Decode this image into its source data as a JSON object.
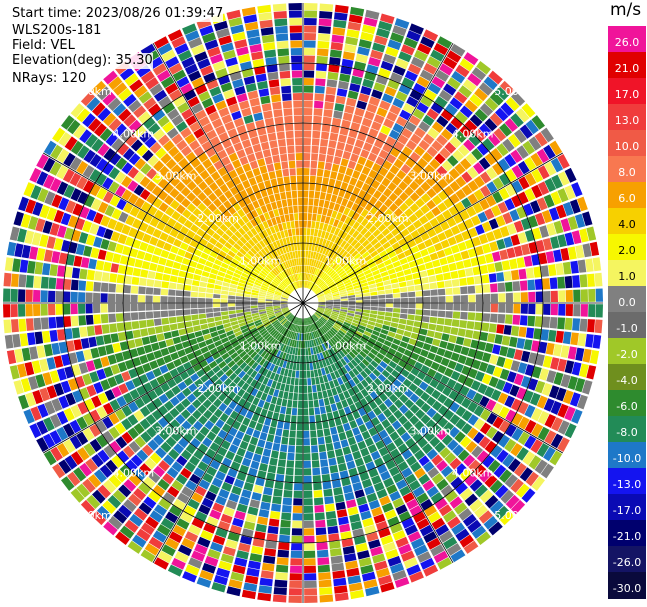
{
  "info": {
    "start_time": "Start time: 2023/08/26 01:39:47",
    "device": "WLS200s-181",
    "field": "Field: VEL",
    "elevation": "Elevation(deg): 35.30",
    "nrays": "NRays: 120"
  },
  "colorbar": {
    "unit": "m/s",
    "ticks": [
      "26.0",
      "21.0",
      "17.0",
      "13.0",
      "10.0",
      "8.0",
      "6.0",
      "4.0",
      "2.0",
      "1.0",
      "0.0",
      "-1.0",
      "-2.0",
      "-4.0",
      "-6.0",
      "-8.0",
      "-10.0",
      "-13.0",
      "-17.0",
      "-21.0",
      "-26.0",
      "-30.0"
    ],
    "colors": [
      "#f0149a",
      "#e00000",
      "#f01428",
      "#f03c3c",
      "#f05a46",
      "#f87850",
      "#f7a000",
      "#f7d000",
      "#f7f700",
      "#f5f560",
      "#808080",
      "#6b6b6b",
      "#a0c828",
      "#6f8f1e",
      "#2e8b2e",
      "#228b57",
      "#1e78c8",
      "#1414f0",
      "#0a0ab4",
      "#00006e",
      "#141464",
      "#0a0a3c"
    ]
  },
  "chart_data": {
    "type": "ppi-radar",
    "field": "VEL",
    "unit": "m/s",
    "elevation_deg": 35.3,
    "nrays": 120,
    "range_rings_km": [
      1.0,
      2.0,
      3.0,
      4.0,
      5.0
    ],
    "ring_labels": [
      "1.00km",
      "2.00km",
      "3.00km",
      "4.00km",
      "5.00km"
    ],
    "radial_spokes_deg": [
      0,
      30,
      60,
      90,
      120,
      150,
      180,
      210,
      240,
      270,
      300,
      330
    ],
    "max_range_km": 5.0,
    "pattern": "northern half positive (toward red/orange at far range, yellow near center), southern half negative (greens, blue patches), noisy multicolor beyond ~3.5 km"
  }
}
